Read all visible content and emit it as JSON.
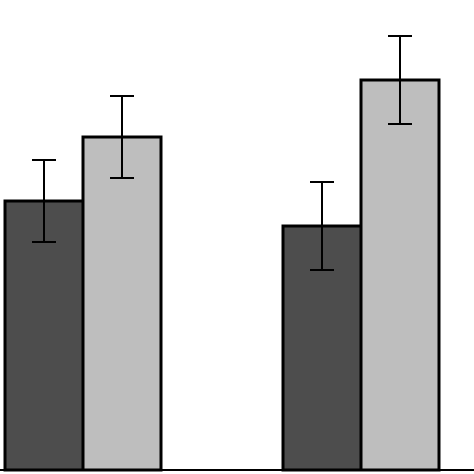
{
  "chart_data": {
    "type": "bar",
    "categories": [
      null,
      null
    ],
    "series": [
      {
        "color": "#4d4d4d",
        "values": [
          269,
          244
        ],
        "errors": [
          41,
          44
        ]
      },
      {
        "color": "#bebebe",
        "values": [
          333,
          390
        ],
        "errors": [
          41,
          44
        ]
      }
    ],
    "ylim": [
      0,
      470
    ]
  }
}
